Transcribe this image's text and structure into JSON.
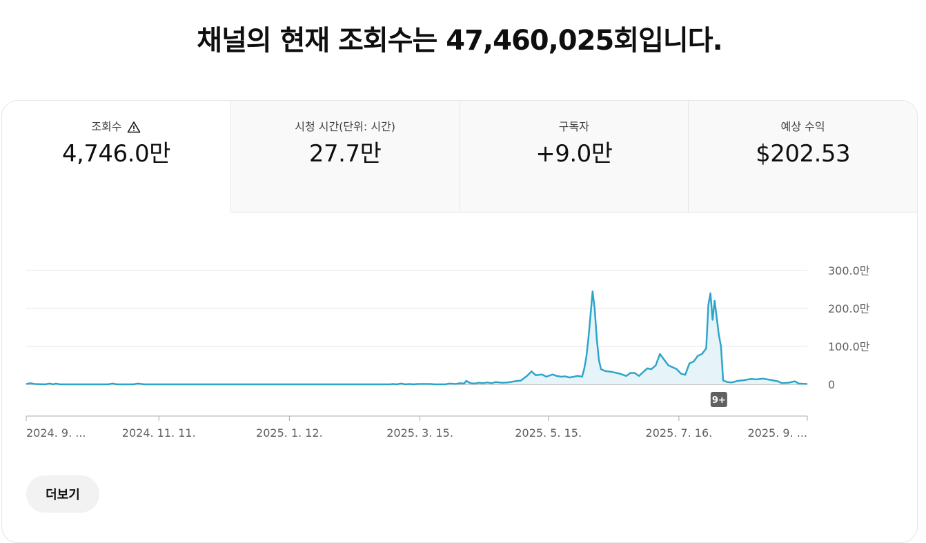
{
  "headline": "채널의 현재 조회수는 47,460,025회입니다.",
  "tabs": [
    {
      "label": "조회수",
      "value": "4,746.0만",
      "active": true,
      "icon": "warning-icon"
    },
    {
      "label": "시청 시간(단위: 시간)",
      "value": "27.7만",
      "active": false
    },
    {
      "label": "구독자",
      "value": "+9.0만",
      "active": false
    },
    {
      "label": "예상 수익",
      "value": "$202.53",
      "active": false
    }
  ],
  "more_button": "더보기",
  "marker_badge": "9+",
  "colors": {
    "line": "#2ca5c9",
    "fill": "#e6f4f9",
    "badge": "#606060"
  },
  "chart_data": {
    "type": "area",
    "y_tick_labels": [
      "0",
      "100.0만",
      "200.0만",
      "300.0만"
    ],
    "y_ticks": [
      0,
      100,
      200,
      300
    ],
    "ylim": [
      0,
      300
    ],
    "y_unit": "만",
    "x_tick_labels": [
      "2024. 9. ...",
      "2024. 11. 11.",
      "2025. 1. 12.",
      "2025. 3. 15.",
      "2025. 5. 15.",
      "2025. 7. 16.",
      "2025. 9. ..."
    ],
    "x_tick_dates": [
      "2024-09-09",
      "2024-11-11",
      "2025-01-12",
      "2025-03-15",
      "2025-05-15",
      "2025-07-16",
      "2025-09-15"
    ],
    "x_range": [
      "2024-09-09",
      "2025-09-15"
    ],
    "grid": true,
    "series": [
      {
        "values": [
          [
            "2024-09-09",
            1
          ],
          [
            "2024-09-11",
            3
          ],
          [
            "2024-09-13",
            1
          ],
          [
            "2024-09-18",
            0
          ],
          [
            "2024-09-20",
            2
          ],
          [
            "2024-09-22",
            0
          ],
          [
            "2024-09-23",
            2
          ],
          [
            "2024-09-25",
            0
          ],
          [
            "2024-10-18",
            0
          ],
          [
            "2024-10-20",
            2
          ],
          [
            "2024-10-22",
            0
          ],
          [
            "2024-10-30",
            0
          ],
          [
            "2024-11-01",
            2
          ],
          [
            "2024-11-04",
            0
          ],
          [
            "2025-03-01",
            0
          ],
          [
            "2025-03-02",
            1
          ],
          [
            "2025-03-04",
            0
          ],
          [
            "2025-03-06",
            2
          ],
          [
            "2025-03-08",
            0
          ],
          [
            "2025-03-10",
            1
          ],
          [
            "2025-03-12",
            0
          ],
          [
            "2025-03-14",
            1
          ],
          [
            "2025-03-20",
            1
          ],
          [
            "2025-03-22",
            0
          ],
          [
            "2025-03-27",
            0
          ],
          [
            "2025-03-29",
            2
          ],
          [
            "2025-04-01",
            1
          ],
          [
            "2025-04-03",
            3
          ],
          [
            "2025-04-05",
            2
          ],
          [
            "2025-04-06",
            9
          ],
          [
            "2025-04-08",
            3
          ],
          [
            "2025-04-10",
            2
          ],
          [
            "2025-04-12",
            4
          ],
          [
            "2025-04-14",
            3
          ],
          [
            "2025-04-16",
            5
          ],
          [
            "2025-04-18",
            3
          ],
          [
            "2025-04-20",
            6
          ],
          [
            "2025-04-23",
            4
          ],
          [
            "2025-04-26",
            5
          ],
          [
            "2025-04-29",
            8
          ],
          [
            "2025-05-02",
            10
          ],
          [
            "2025-05-05",
            23
          ],
          [
            "2025-05-07",
            34
          ],
          [
            "2025-05-09",
            24
          ],
          [
            "2025-05-12",
            26
          ],
          [
            "2025-05-14",
            20
          ],
          [
            "2025-05-17",
            26
          ],
          [
            "2025-05-19",
            22
          ],
          [
            "2025-05-21",
            20
          ],
          [
            "2025-05-23",
            21
          ],
          [
            "2025-05-25",
            18
          ],
          [
            "2025-05-27",
            20
          ],
          [
            "2025-05-29",
            22
          ],
          [
            "2025-05-31",
            20
          ],
          [
            "2025-06-01",
            40
          ],
          [
            "2025-06-02",
            70
          ],
          [
            "2025-06-03",
            120
          ],
          [
            "2025-06-04",
            180
          ],
          [
            "2025-06-05",
            245
          ],
          [
            "2025-06-06",
            200
          ],
          [
            "2025-06-07",
            120
          ],
          [
            "2025-06-08",
            65
          ],
          [
            "2025-06-09",
            40
          ],
          [
            "2025-06-11",
            35
          ],
          [
            "2025-06-14",
            33
          ],
          [
            "2025-06-18",
            28
          ],
          [
            "2025-06-21",
            22
          ],
          [
            "2025-06-23",
            30
          ],
          [
            "2025-06-25",
            30
          ],
          [
            "2025-06-27",
            22
          ],
          [
            "2025-06-29",
            32
          ],
          [
            "2025-07-01",
            42
          ],
          [
            "2025-07-03",
            40
          ],
          [
            "2025-07-05",
            50
          ],
          [
            "2025-07-07",
            80
          ],
          [
            "2025-07-09",
            65
          ],
          [
            "2025-07-11",
            50
          ],
          [
            "2025-07-13",
            45
          ],
          [
            "2025-07-15",
            40
          ],
          [
            "2025-07-17",
            28
          ],
          [
            "2025-07-19",
            25
          ],
          [
            "2025-07-21",
            55
          ],
          [
            "2025-07-23",
            60
          ],
          [
            "2025-07-25",
            75
          ],
          [
            "2025-07-27",
            80
          ],
          [
            "2025-07-29",
            95
          ],
          [
            "2025-07-30",
            210
          ],
          [
            "2025-07-31",
            240
          ],
          [
            "2025-08-01",
            170
          ],
          [
            "2025-08-02",
            220
          ],
          [
            "2025-08-04",
            130
          ],
          [
            "2025-08-05",
            100
          ],
          [
            "2025-08-06",
            10
          ],
          [
            "2025-08-08",
            6
          ],
          [
            "2025-08-10",
            5
          ],
          [
            "2025-08-13",
            9
          ],
          [
            "2025-08-16",
            11
          ],
          [
            "2025-08-19",
            14
          ],
          [
            "2025-08-22",
            13
          ],
          [
            "2025-08-25",
            15
          ],
          [
            "2025-08-28",
            12
          ],
          [
            "2025-09-01",
            8
          ],
          [
            "2025-09-03",
            3
          ],
          [
            "2025-09-06",
            4
          ],
          [
            "2025-09-09",
            8
          ],
          [
            "2025-09-11",
            2
          ],
          [
            "2025-09-15",
            1
          ]
        ]
      }
    ],
    "marker_date": "2025-08-04"
  }
}
